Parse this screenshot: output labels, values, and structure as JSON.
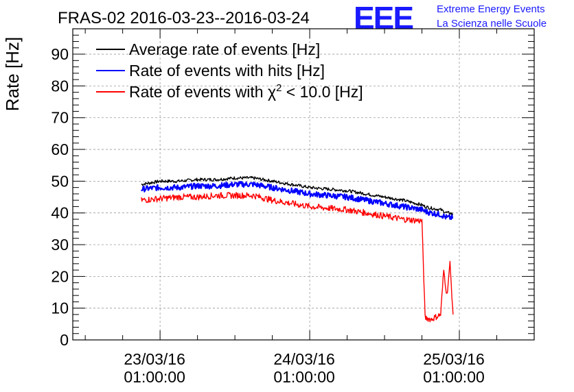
{
  "chart_data": {
    "type": "line",
    "title": "FRAS-02 2016-03-23--2016-03-24",
    "ylabel": "Rate [Hz]",
    "xlabel": "",
    "ylim": [
      0,
      98
    ],
    "y_ticks": [
      0,
      10,
      20,
      30,
      40,
      50,
      60,
      70,
      80,
      90
    ],
    "x_range_hours": [
      -14,
      60
    ],
    "x_ticks": [
      {
        "hour": 0,
        "date": "23/03/16",
        "time": "01:00:00"
      },
      {
        "hour": 24,
        "date": "24/03/16",
        "time": "01:00:00"
      },
      {
        "hour": 48,
        "date": "25/03/16",
        "time": "01:00:00"
      }
    ],
    "grid": true,
    "legend_position": "top-left",
    "x_hours": [
      -3,
      0,
      3,
      6,
      9,
      12,
      15,
      18,
      21,
      24,
      27,
      30,
      33,
      36,
      39,
      42,
      42.5,
      43.5,
      45,
      45.5,
      46,
      46.5,
      47
    ],
    "series": [
      {
        "name": "Average rate of events [Hz]",
        "color": "#000000",
        "values": [
          49,
          50,
          50,
          50.5,
          50.5,
          51,
          51,
          50,
          49,
          48,
          47.5,
          47,
          46,
          45,
          44,
          42.5,
          42,
          41.5,
          41,
          40.5,
          40,
          40,
          39.5
        ]
      },
      {
        "name": "Rate of events with hits [Hz]",
        "color": "#0000ff",
        "values": [
          47.5,
          48,
          48,
          48.5,
          48.5,
          49,
          49,
          48,
          47,
          46,
          45.5,
          45,
          44,
          43,
          42,
          41,
          40.5,
          40,
          39.5,
          39,
          38.5,
          38.5,
          38.5
        ]
      },
      {
        "name": "Rate of events with χ² < 10.0 [Hz]",
        "color": "#ff0000",
        "values": [
          44,
          44.5,
          45,
          45,
          45.5,
          45.5,
          45.5,
          44,
          43,
          42,
          41.5,
          41,
          40,
          39,
          38,
          37.5,
          7,
          6.5,
          8,
          22,
          14,
          24,
          8
        ]
      }
    ]
  },
  "logo": {
    "mark": "EEE",
    "line1": "Extreme Energy Events",
    "line2": "La Scienza nelle Scuole"
  },
  "legend": {
    "line1": "Average rate of events [Hz]",
    "line2": "Rate of events with hits [Hz]",
    "line3_prefix": "Rate of events with χ",
    "line3_sup": "2",
    "line3_suffix": " < 10.0 [Hz]"
  }
}
